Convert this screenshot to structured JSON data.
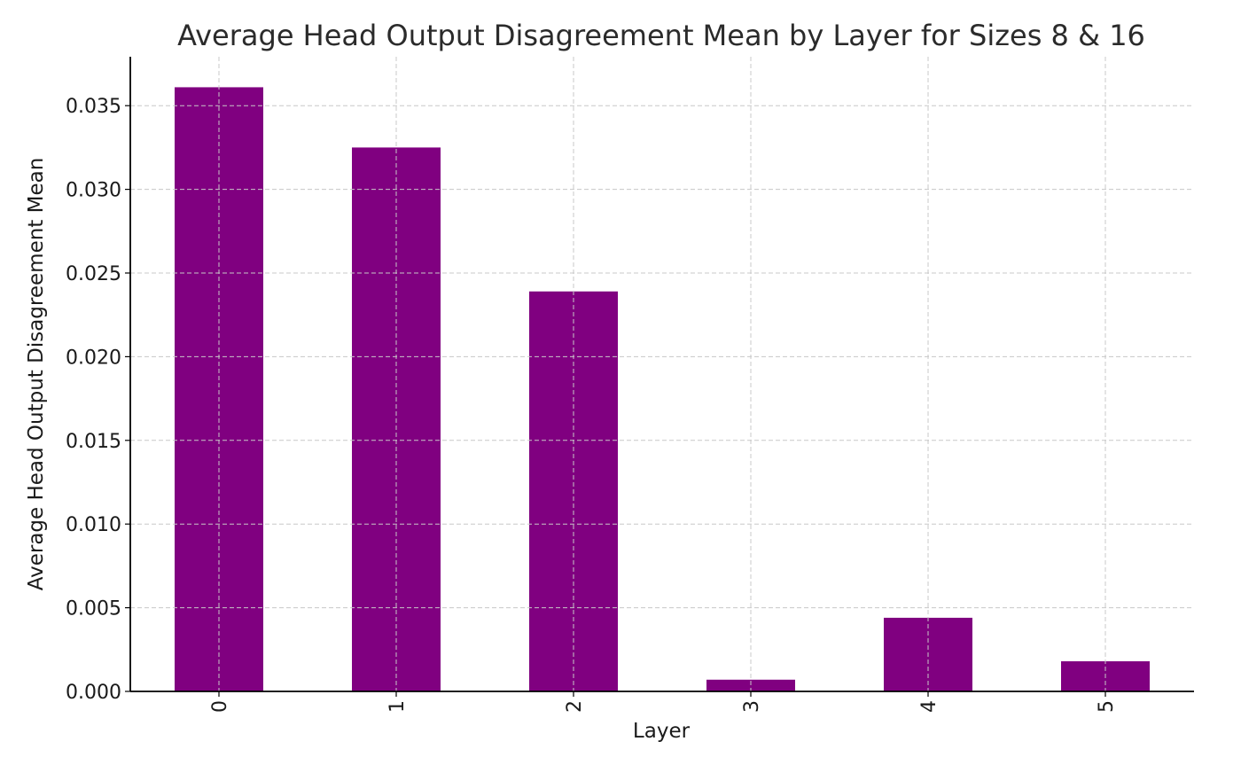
{
  "chart_data": {
    "type": "bar",
    "title": "Average Head Output Disagreement Mean by Layer for Sizes 8 & 16",
    "xlabel": "Layer",
    "ylabel": "Average Head Output Disagreement Mean",
    "categories": [
      "0",
      "1",
      "2",
      "3",
      "4",
      "5"
    ],
    "values": [
      0.0361,
      0.0325,
      0.0239,
      0.0007,
      0.0044,
      0.0018
    ],
    "ylim": [
      0,
      0.038
    ],
    "yticks": [
      "0.000",
      "0.005",
      "0.010",
      "0.015",
      "0.020",
      "0.025",
      "0.030",
      "0.035"
    ],
    "grid": true,
    "bar_color": "#800080"
  }
}
